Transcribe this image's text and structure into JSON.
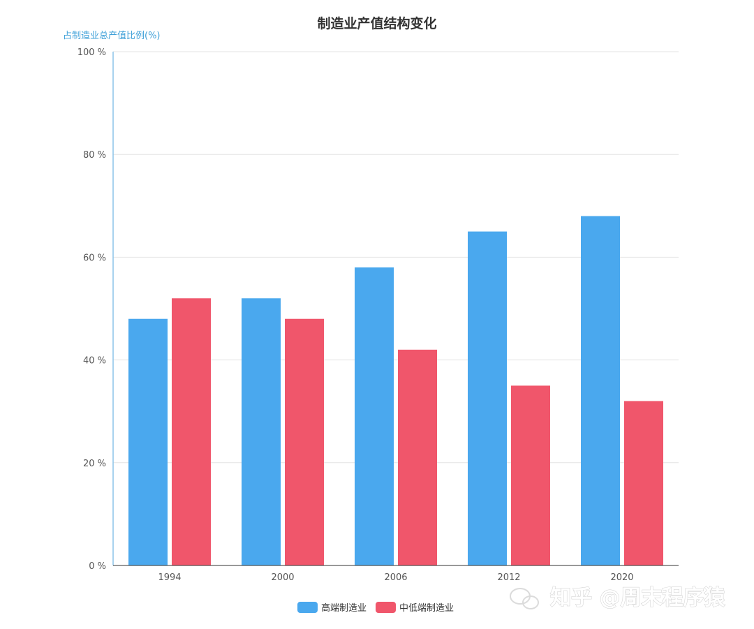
{
  "chart_data": {
    "type": "bar",
    "title": "制造业产值结构变化",
    "ylabel": "占制造业总产值比例(%)",
    "xlabel": "",
    "categories": [
      "1994",
      "2000",
      "2006",
      "2012",
      "2020"
    ],
    "series": [
      {
        "name": "高端制造业",
        "color": "#4aa8ee",
        "values": [
          48,
          52,
          58,
          65,
          68
        ]
      },
      {
        "name": "中低端制造业",
        "color": "#f0566b",
        "values": [
          52,
          48,
          42,
          35,
          32
        ]
      }
    ],
    "ylim": [
      0,
      100
    ],
    "yticks": [
      0,
      20,
      40,
      60,
      80,
      100
    ],
    "ytick_labels": [
      "0 %",
      "20 %",
      "40 %",
      "60 %",
      "80 %",
      "100 %"
    ],
    "grid": true,
    "legend_position": "bottom-center"
  },
  "watermark": {
    "text": "知乎 @周末程序猿",
    "icon": "wechat-icon"
  },
  "colors": {
    "grid": "#e3e3e3",
    "y_axis_line": "#8cc4e8",
    "x_axis_line": "#333333"
  }
}
